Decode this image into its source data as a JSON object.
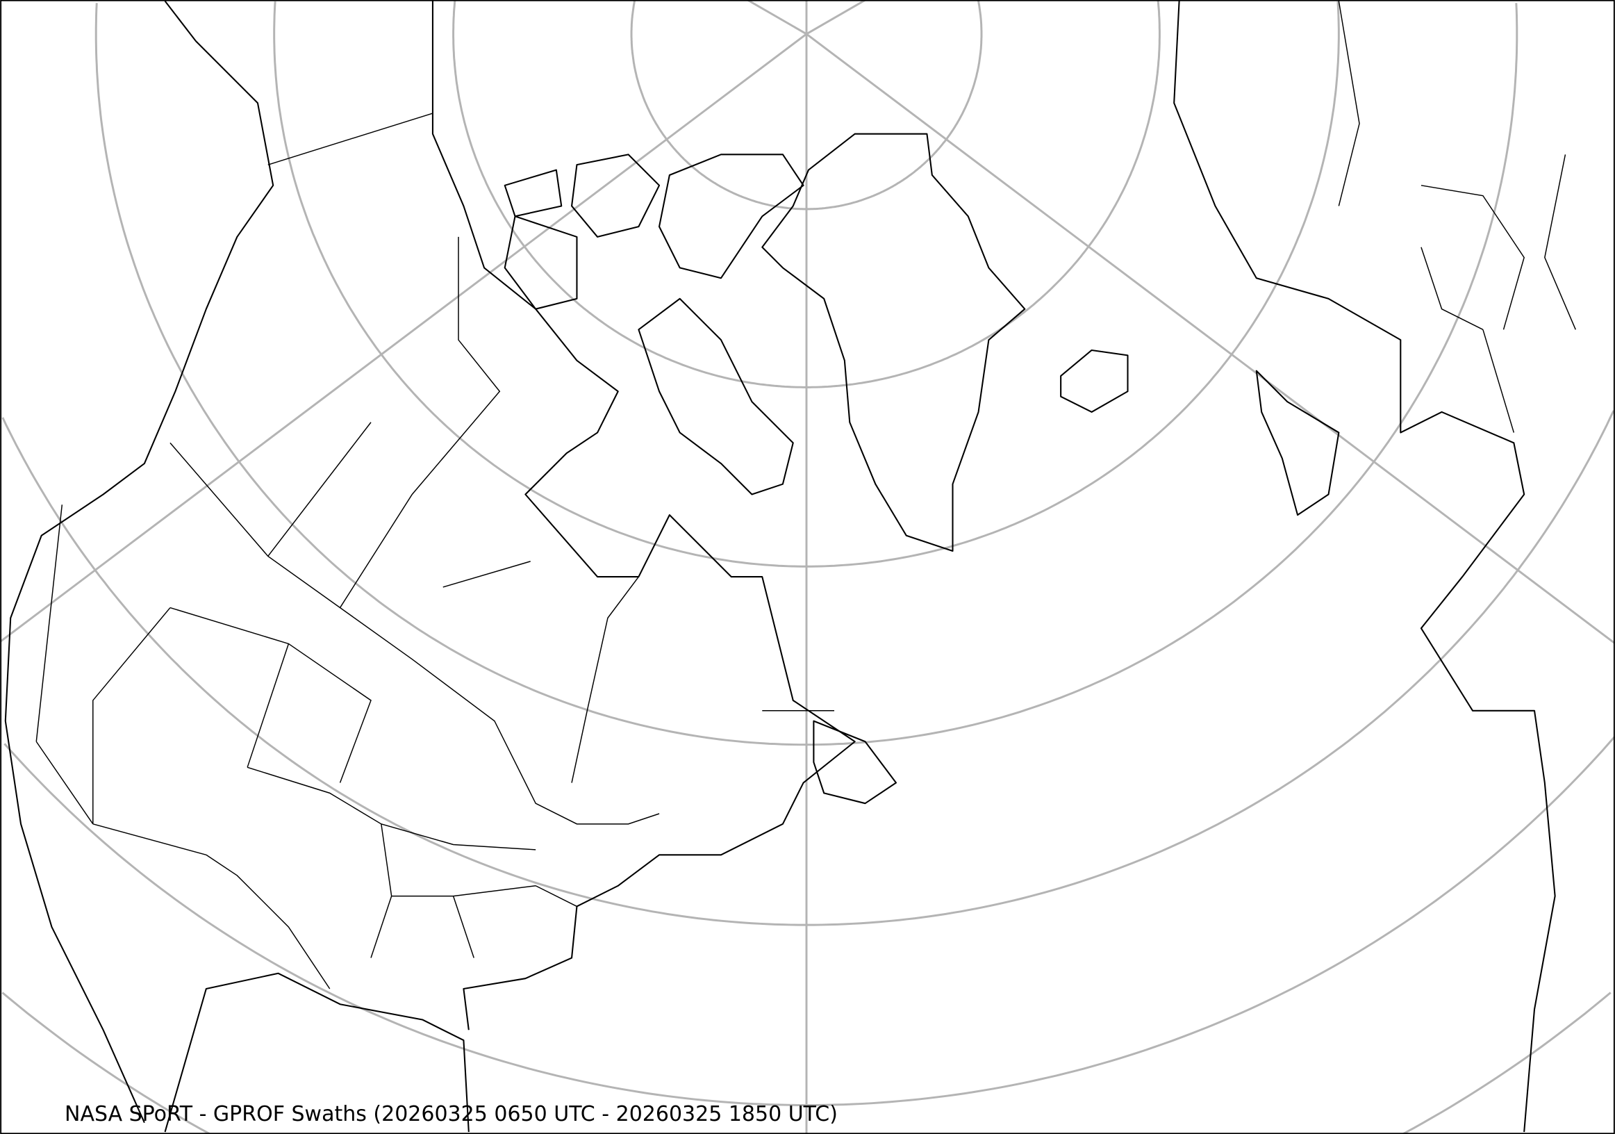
{
  "caption": "NASA SPoRT - GPROF Swaths (20260325 0650 UTC - 20260325 1850 UTC)",
  "map": {
    "projection": "polar stereographic (north)",
    "region": "North America, Greenland, North Atlantic, Europe",
    "colors": {
      "background": "#ffffff",
      "coastline": "#000000",
      "graticule": "#b4b4b4",
      "frame": "#000000"
    }
  }
}
